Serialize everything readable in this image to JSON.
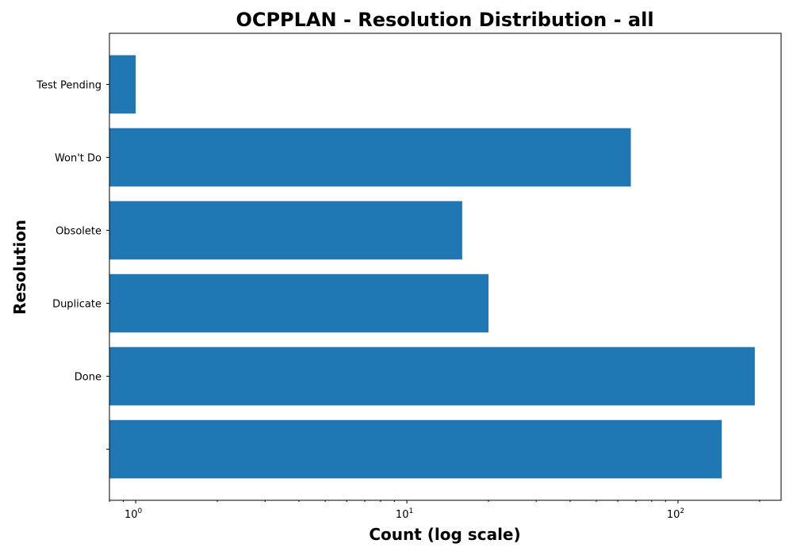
{
  "chart_data": {
    "type": "bar",
    "orientation": "horizontal",
    "title": "OCPPLAN - Resolution Distribution - all",
    "xlabel": "Count (log scale)",
    "ylabel": "Resolution",
    "xscale": "log",
    "xlim": [
      0.8,
      240
    ],
    "x_major_ticks": [
      {
        "value": 1,
        "base": "10",
        "exponent": "0"
      },
      {
        "value": 10,
        "base": "10",
        "exponent": "1"
      },
      {
        "value": 100,
        "base": "10",
        "exponent": "2"
      }
    ],
    "categories": [
      "",
      "Done",
      "Duplicate",
      "Obsolete",
      "Won't Do",
      "Test Pending"
    ],
    "values": [
      145,
      192,
      20,
      16,
      67,
      1
    ],
    "color": "#1f77b4",
    "grid": false,
    "legend": "none"
  }
}
